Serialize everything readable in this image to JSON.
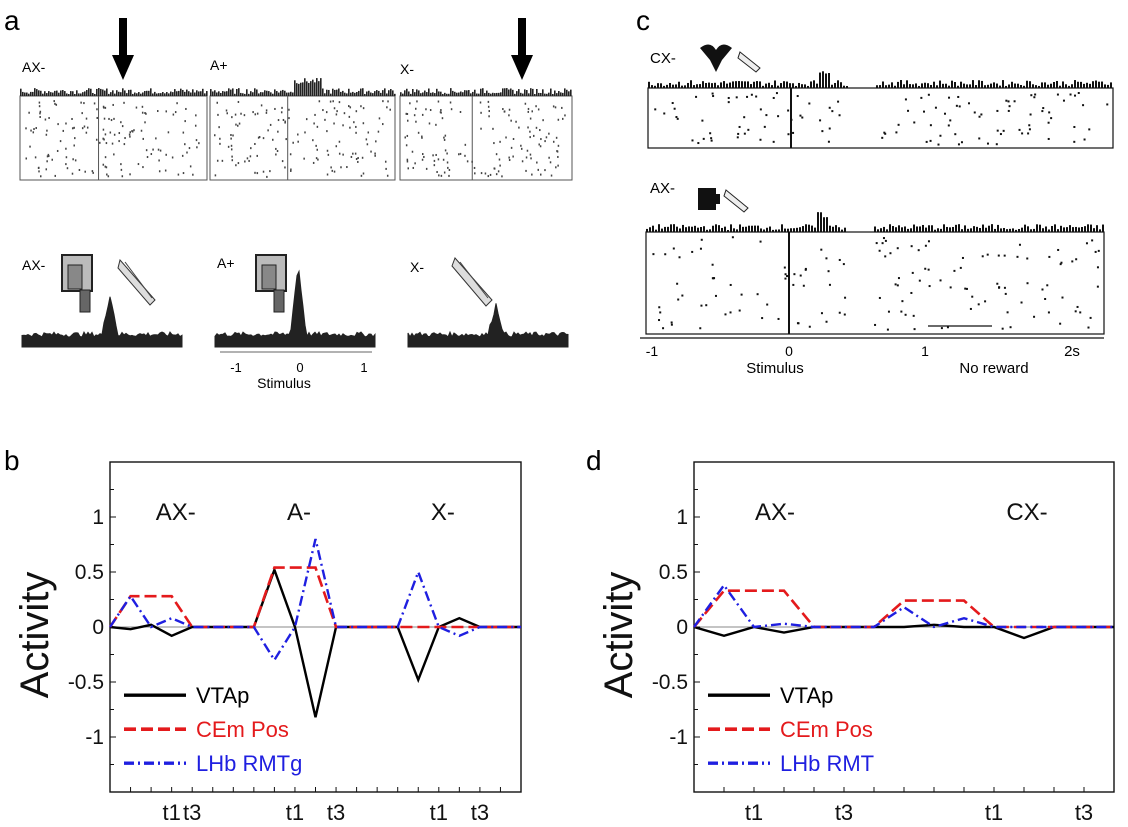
{
  "panel_labels": [
    "a",
    "b",
    "c",
    "d"
  ],
  "colors": {
    "vtap": "#000000",
    "cem": "#e41a1c",
    "lhb": "#1f1fe0",
    "axis": "#111111",
    "zero": "#8a8a8a"
  },
  "panel_a": {
    "top_labels": [
      "AX-",
      "A+",
      "X-"
    ],
    "bottom_labels": [
      "AX-",
      "A+",
      "X-"
    ],
    "axis_ticks": [
      "-1",
      "0",
      "1"
    ],
    "axis_caption": "Stimulus"
  },
  "panel_c": {
    "row_labels": [
      "CX-",
      "AX-"
    ],
    "axis_ticks": [
      "-1",
      "0",
      "1",
      "2s"
    ],
    "stim_label": "Stimulus",
    "reward_label": "No reward"
  },
  "chart_data": [
    {
      "type": "line",
      "panel": "b",
      "ylabel": "Activity",
      "ylim": [
        -1.5,
        1.5
      ],
      "yticks": [
        "1",
        "0.5",
        "0",
        "-0.5",
        "-1"
      ],
      "xlim": [
        0,
        20
      ],
      "xticks": [
        {
          "x": 3,
          "label": "t1"
        },
        {
          "x": 4,
          "label": "t3"
        },
        {
          "x": 9,
          "label": "t1"
        },
        {
          "x": 11,
          "label": "t3"
        },
        {
          "x": 16,
          "label": "t1"
        },
        {
          "x": 18,
          "label": "t3"
        }
      ],
      "condition_labels": [
        "AX-",
        "A-",
        "X-"
      ],
      "legend": "bottom-left",
      "x": [
        0,
        1,
        2,
        3,
        4,
        5,
        6,
        7,
        8,
        9,
        10,
        11,
        12,
        13,
        14,
        15,
        16,
        17,
        18,
        19,
        20
      ],
      "series": [
        {
          "name": "VTAp",
          "style": "solid",
          "values": [
            0,
            -0.02,
            0.02,
            -0.08,
            0,
            0,
            0,
            0,
            0.52,
            0,
            -0.82,
            0,
            0,
            0,
            0,
            -0.48,
            0,
            0.08,
            0,
            0,
            0
          ]
        },
        {
          "name": "CEm Pos",
          "style": "dashed",
          "values": [
            0,
            0.28,
            0.28,
            0.28,
            0,
            0,
            0,
            0,
            0.54,
            0.54,
            0.54,
            0,
            0,
            0,
            0,
            0,
            0,
            0,
            0,
            0,
            0
          ]
        },
        {
          "name": "LHb RMTg",
          "style": "dashdot",
          "values": [
            0,
            0.28,
            0,
            0.08,
            0,
            0,
            0,
            0,
            -0.3,
            0,
            0.8,
            0,
            0,
            0,
            0,
            0.5,
            0,
            -0.08,
            0,
            0,
            0
          ]
        }
      ]
    },
    {
      "type": "line",
      "panel": "d",
      "ylabel": "Activity",
      "ylim": [
        -1.5,
        1.5
      ],
      "yticks": [
        "1",
        "0.5",
        "0",
        "-0.5",
        "-1"
      ],
      "xlim": [
        0,
        14
      ],
      "xticks": [
        {
          "x": 2,
          "label": "t1"
        },
        {
          "x": 5,
          "label": "t3"
        },
        {
          "x": 10,
          "label": "t1"
        },
        {
          "x": 13,
          "label": "t3"
        }
      ],
      "condition_labels": [
        "AX-",
        "CX-"
      ],
      "legend": "bottom-left",
      "x": [
        0,
        1,
        2,
        3,
        4,
        5,
        6,
        7,
        8,
        9,
        10,
        11,
        12,
        13,
        14
      ],
      "series": [
        {
          "name": "VTAp",
          "style": "solid",
          "values": [
            0,
            -0.08,
            0,
            -0.05,
            0,
            0,
            0,
            0,
            0.02,
            0,
            0,
            -0.1,
            0,
            0,
            0
          ]
        },
        {
          "name": "CEm Pos",
          "style": "dashed",
          "values": [
            0,
            0.33,
            0.33,
            0.33,
            0,
            0,
            0,
            0.24,
            0.24,
            0.24,
            0,
            0,
            0,
            0,
            0
          ]
        },
        {
          "name": "LHb RMT",
          "style": "dashdot",
          "values": [
            0,
            0.38,
            0,
            0.03,
            0,
            0,
            0,
            0.18,
            0,
            0.08,
            0,
            0,
            0,
            0,
            0
          ]
        }
      ]
    }
  ]
}
